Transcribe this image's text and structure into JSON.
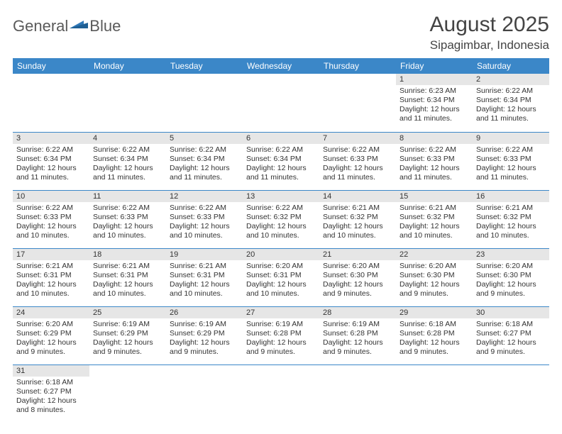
{
  "logo": {
    "text1": "General",
    "text2": "Blue"
  },
  "title": "August 2025",
  "location": "Sipagimbar, Indonesia",
  "colors": {
    "header_bg": "#3b87c8",
    "header_text": "#ffffff",
    "daynum_bg": "#e6e6e6",
    "row_border": "#3b87c8",
    "text": "#333333",
    "background": "#ffffff"
  },
  "typography": {
    "title_fontsize": 30,
    "location_fontsize": 17,
    "header_fontsize": 12,
    "daynum_fontsize": 11,
    "body_fontsize": 10.5
  },
  "weekdays": [
    "Sunday",
    "Monday",
    "Tuesday",
    "Wednesday",
    "Thursday",
    "Friday",
    "Saturday"
  ],
  "weeks": [
    [
      null,
      null,
      null,
      null,
      null,
      {
        "n": "1",
        "sunrise": "6:23 AM",
        "sunset": "6:34 PM",
        "dl_h": "12",
        "dl_m": "11"
      },
      {
        "n": "2",
        "sunrise": "6:22 AM",
        "sunset": "6:34 PM",
        "dl_h": "12",
        "dl_m": "11"
      }
    ],
    [
      {
        "n": "3",
        "sunrise": "6:22 AM",
        "sunset": "6:34 PM",
        "dl_h": "12",
        "dl_m": "11"
      },
      {
        "n": "4",
        "sunrise": "6:22 AM",
        "sunset": "6:34 PM",
        "dl_h": "12",
        "dl_m": "11"
      },
      {
        "n": "5",
        "sunrise": "6:22 AM",
        "sunset": "6:34 PM",
        "dl_h": "12",
        "dl_m": "11"
      },
      {
        "n": "6",
        "sunrise": "6:22 AM",
        "sunset": "6:34 PM",
        "dl_h": "12",
        "dl_m": "11"
      },
      {
        "n": "7",
        "sunrise": "6:22 AM",
        "sunset": "6:33 PM",
        "dl_h": "12",
        "dl_m": "11"
      },
      {
        "n": "8",
        "sunrise": "6:22 AM",
        "sunset": "6:33 PM",
        "dl_h": "12",
        "dl_m": "11"
      },
      {
        "n": "9",
        "sunrise": "6:22 AM",
        "sunset": "6:33 PM",
        "dl_h": "12",
        "dl_m": "11"
      }
    ],
    [
      {
        "n": "10",
        "sunrise": "6:22 AM",
        "sunset": "6:33 PM",
        "dl_h": "12",
        "dl_m": "10"
      },
      {
        "n": "11",
        "sunrise": "6:22 AM",
        "sunset": "6:33 PM",
        "dl_h": "12",
        "dl_m": "10"
      },
      {
        "n": "12",
        "sunrise": "6:22 AM",
        "sunset": "6:33 PM",
        "dl_h": "12",
        "dl_m": "10"
      },
      {
        "n": "13",
        "sunrise": "6:22 AM",
        "sunset": "6:32 PM",
        "dl_h": "12",
        "dl_m": "10"
      },
      {
        "n": "14",
        "sunrise": "6:21 AM",
        "sunset": "6:32 PM",
        "dl_h": "12",
        "dl_m": "10"
      },
      {
        "n": "15",
        "sunrise": "6:21 AM",
        "sunset": "6:32 PM",
        "dl_h": "12",
        "dl_m": "10"
      },
      {
        "n": "16",
        "sunrise": "6:21 AM",
        "sunset": "6:32 PM",
        "dl_h": "12",
        "dl_m": "10"
      }
    ],
    [
      {
        "n": "17",
        "sunrise": "6:21 AM",
        "sunset": "6:31 PM",
        "dl_h": "12",
        "dl_m": "10"
      },
      {
        "n": "18",
        "sunrise": "6:21 AM",
        "sunset": "6:31 PM",
        "dl_h": "12",
        "dl_m": "10"
      },
      {
        "n": "19",
        "sunrise": "6:21 AM",
        "sunset": "6:31 PM",
        "dl_h": "12",
        "dl_m": "10"
      },
      {
        "n": "20",
        "sunrise": "6:20 AM",
        "sunset": "6:31 PM",
        "dl_h": "12",
        "dl_m": "10"
      },
      {
        "n": "21",
        "sunrise": "6:20 AM",
        "sunset": "6:30 PM",
        "dl_h": "12",
        "dl_m": "9"
      },
      {
        "n": "22",
        "sunrise": "6:20 AM",
        "sunset": "6:30 PM",
        "dl_h": "12",
        "dl_m": "9"
      },
      {
        "n": "23",
        "sunrise": "6:20 AM",
        "sunset": "6:30 PM",
        "dl_h": "12",
        "dl_m": "9"
      }
    ],
    [
      {
        "n": "24",
        "sunrise": "6:20 AM",
        "sunset": "6:29 PM",
        "dl_h": "12",
        "dl_m": "9"
      },
      {
        "n": "25",
        "sunrise": "6:19 AM",
        "sunset": "6:29 PM",
        "dl_h": "12",
        "dl_m": "9"
      },
      {
        "n": "26",
        "sunrise": "6:19 AM",
        "sunset": "6:29 PM",
        "dl_h": "12",
        "dl_m": "9"
      },
      {
        "n": "27",
        "sunrise": "6:19 AM",
        "sunset": "6:28 PM",
        "dl_h": "12",
        "dl_m": "9"
      },
      {
        "n": "28",
        "sunrise": "6:19 AM",
        "sunset": "6:28 PM",
        "dl_h": "12",
        "dl_m": "9"
      },
      {
        "n": "29",
        "sunrise": "6:18 AM",
        "sunset": "6:28 PM",
        "dl_h": "12",
        "dl_m": "9"
      },
      {
        "n": "30",
        "sunrise": "6:18 AM",
        "sunset": "6:27 PM",
        "dl_h": "12",
        "dl_m": "9"
      }
    ],
    [
      {
        "n": "31",
        "sunrise": "6:18 AM",
        "sunset": "6:27 PM",
        "dl_h": "12",
        "dl_m": "8"
      },
      null,
      null,
      null,
      null,
      null,
      null
    ]
  ],
  "labels": {
    "sunrise": "Sunrise:",
    "sunset": "Sunset:",
    "daylight": "Daylight:",
    "hours": "hours",
    "and": "and",
    "minutes": "minutes."
  }
}
